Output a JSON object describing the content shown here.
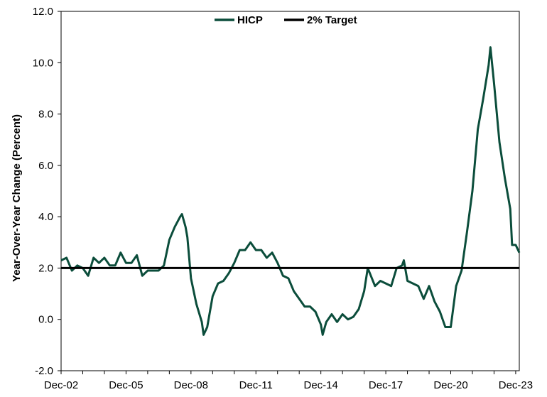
{
  "chart_data": {
    "type": "line",
    "title": "",
    "xlabel": "",
    "ylabel": "Year-Over-Year Change (Percent)",
    "ylim": [
      -2.0,
      12.0
    ],
    "yticks": [
      "-2.0",
      "0.0",
      "2.0",
      "4.0",
      "6.0",
      "8.0",
      "10.0",
      "12.0"
    ],
    "xlim": [
      "2002-12",
      "2024-02"
    ],
    "xticks": [
      {
        "date": "2002-12",
        "label": "Dec-02"
      },
      {
        "date": "2005-12",
        "label": "Dec-05"
      },
      {
        "date": "2008-12",
        "label": "Dec-08"
      },
      {
        "date": "2011-12",
        "label": "Dec-11"
      },
      {
        "date": "2014-12",
        "label": "Dec-14"
      },
      {
        "date": "2017-12",
        "label": "Dec-17"
      },
      {
        "date": "2020-12",
        "label": "Dec-20"
      },
      {
        "date": "2023-12",
        "label": "Dec-23"
      }
    ],
    "grid": false,
    "legend_position": "top-center",
    "legend": [
      {
        "label": "HICP",
        "color": "#0b4d3b"
      },
      {
        "label": "2% Target",
        "color": "#000000"
      }
    ],
    "series": [
      {
        "name": "HICP",
        "color": "#0b4d3b",
        "points": [
          [
            "2002-12",
            2.3
          ],
          [
            "2003-03",
            2.4
          ],
          [
            "2003-06",
            1.9
          ],
          [
            "2003-09",
            2.1
          ],
          [
            "2003-12",
            2.0
          ],
          [
            "2004-03",
            1.7
          ],
          [
            "2004-06",
            2.4
          ],
          [
            "2004-09",
            2.2
          ],
          [
            "2004-12",
            2.4
          ],
          [
            "2005-03",
            2.1
          ],
          [
            "2005-06",
            2.1
          ],
          [
            "2005-09",
            2.6
          ],
          [
            "2005-12",
            2.2
          ],
          [
            "2006-03",
            2.2
          ],
          [
            "2006-06",
            2.5
          ],
          [
            "2006-09",
            1.7
          ],
          [
            "2006-12",
            1.9
          ],
          [
            "2007-03",
            1.9
          ],
          [
            "2007-06",
            1.9
          ],
          [
            "2007-09",
            2.1
          ],
          [
            "2007-12",
            3.1
          ],
          [
            "2008-03",
            3.6
          ],
          [
            "2008-06",
            4.0
          ],
          [
            "2008-07",
            4.1
          ],
          [
            "2008-09",
            3.6
          ],
          [
            "2008-10",
            3.2
          ],
          [
            "2008-12",
            1.6
          ],
          [
            "2009-03",
            0.6
          ],
          [
            "2009-06",
            -0.1
          ],
          [
            "2009-07",
            -0.6
          ],
          [
            "2009-09",
            -0.3
          ],
          [
            "2009-12",
            0.9
          ],
          [
            "2010-03",
            1.4
          ],
          [
            "2010-06",
            1.5
          ],
          [
            "2010-09",
            1.8
          ],
          [
            "2010-12",
            2.2
          ],
          [
            "2011-03",
            2.7
          ],
          [
            "2011-06",
            2.7
          ],
          [
            "2011-09",
            3.0
          ],
          [
            "2011-12",
            2.7
          ],
          [
            "2012-03",
            2.7
          ],
          [
            "2012-06",
            2.4
          ],
          [
            "2012-09",
            2.6
          ],
          [
            "2012-12",
            2.2
          ],
          [
            "2013-03",
            1.7
          ],
          [
            "2013-06",
            1.6
          ],
          [
            "2013-09",
            1.1
          ],
          [
            "2013-12",
            0.8
          ],
          [
            "2014-03",
            0.5
          ],
          [
            "2014-06",
            0.5
          ],
          [
            "2014-09",
            0.3
          ],
          [
            "2014-12",
            -0.2
          ],
          [
            "2015-01",
            -0.6
          ],
          [
            "2015-03",
            -0.1
          ],
          [
            "2015-06",
            0.2
          ],
          [
            "2015-09",
            -0.1
          ],
          [
            "2015-12",
            0.2
          ],
          [
            "2016-03",
            0.0
          ],
          [
            "2016-06",
            0.1
          ],
          [
            "2016-09",
            0.4
          ],
          [
            "2016-12",
            1.1
          ],
          [
            "2017-02",
            2.0
          ],
          [
            "2017-06",
            1.3
          ],
          [
            "2017-09",
            1.5
          ],
          [
            "2017-12",
            1.4
          ],
          [
            "2018-03",
            1.3
          ],
          [
            "2018-06",
            2.0
          ],
          [
            "2018-09",
            2.1
          ],
          [
            "2018-10",
            2.3
          ],
          [
            "2018-12",
            1.5
          ],
          [
            "2019-03",
            1.4
          ],
          [
            "2019-06",
            1.3
          ],
          [
            "2019-09",
            0.8
          ],
          [
            "2019-12",
            1.3
          ],
          [
            "2020-03",
            0.7
          ],
          [
            "2020-06",
            0.3
          ],
          [
            "2020-09",
            -0.3
          ],
          [
            "2020-12",
            -0.3
          ],
          [
            "2021-03",
            1.3
          ],
          [
            "2021-06",
            1.9
          ],
          [
            "2021-09",
            3.4
          ],
          [
            "2021-12",
            5.0
          ],
          [
            "2022-03",
            7.4
          ],
          [
            "2022-06",
            8.6
          ],
          [
            "2022-09",
            9.9
          ],
          [
            "2022-10",
            10.6
          ],
          [
            "2022-12",
            9.2
          ],
          [
            "2023-03",
            6.9
          ],
          [
            "2023-06",
            5.5
          ],
          [
            "2023-09",
            4.3
          ],
          [
            "2023-10",
            2.9
          ],
          [
            "2023-12",
            2.9
          ],
          [
            "2024-02",
            2.6
          ]
        ]
      },
      {
        "name": "2% Target",
        "color": "#000000",
        "points": [
          [
            "2002-12",
            2.0
          ],
          [
            "2024-02",
            2.0
          ]
        ]
      }
    ]
  }
}
